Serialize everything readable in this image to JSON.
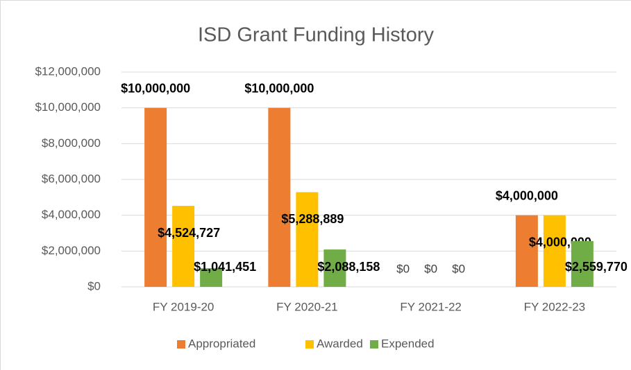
{
  "chart_data": {
    "type": "bar",
    "title": "ISD Grant Funding History",
    "categories": [
      "FY 2019-20",
      "FY 2020-21",
      "FY 2021-22",
      "FY 2022-23"
    ],
    "series": [
      {
        "name": "Appropriated",
        "color": "#ed7d31",
        "values": [
          10000000,
          10000000,
          0,
          4000000
        ],
        "value_labels": [
          "$10,000,000",
          "$10,000,000",
          "$0",
          "$4,000,000"
        ]
      },
      {
        "name": "Awarded",
        "color": "#ffc000",
        "values": [
          4524727,
          5288889,
          0,
          4000000
        ],
        "value_labels": [
          "$4,524,727",
          "$5,288,889",
          "$0",
          "$4,000,000"
        ]
      },
      {
        "name": "Expended",
        "color": "#70ad47",
        "values": [
          1041451,
          2088158,
          0,
          2559770
        ],
        "value_labels": [
          "$1,041,451",
          "$2,088,158",
          "$0",
          "$2,559,770"
        ]
      }
    ],
    "ylim": [
      0,
      12000000
    ],
    "yticks": [
      {
        "value": 0,
        "label": "$0"
      },
      {
        "value": 2000000,
        "label": "$2,000,000"
      },
      {
        "value": 4000000,
        "label": "$4,000,000"
      },
      {
        "value": 6000000,
        "label": "$6,000,000"
      },
      {
        "value": 8000000,
        "label": "$8,000,000"
      },
      {
        "value": 10000000,
        "label": "$10,000,000"
      },
      {
        "value": 12000000,
        "label": "$12,000,000"
      }
    ],
    "grid": true,
    "legend": "bottom"
  }
}
